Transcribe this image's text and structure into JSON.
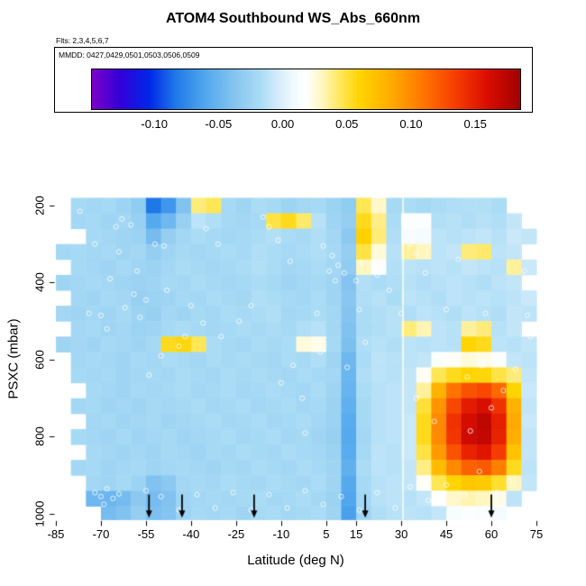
{
  "chart_data": {
    "type": "heatmap",
    "title": "ATOM4 Southbound WS_Abs_660nm",
    "annotations": {
      "flights": "Flts: 2,3,4,5,6,7",
      "mmdd": "MMDD: 0427,0429,0501,0503,0506,0509"
    },
    "xlabel": "Latitude (deg N)",
    "ylabel": "PSXC (mbar)",
    "x_axis": {
      "range": [
        -85,
        75
      ],
      "ticks": [
        -85,
        -70,
        -55,
        -40,
        -25,
        -10,
        5,
        15,
        30,
        45,
        60,
        75
      ]
    },
    "y_axis": {
      "range": [
        180,
        1015
      ],
      "ticks": [
        200,
        400,
        600,
        800,
        1000
      ],
      "reversed": true
    },
    "colorbar": {
      "range": [
        -0.15,
        0.185
      ],
      "tick_labels": [
        "-0.10",
        "-0.05",
        "0.00",
        "0.05",
        "0.10",
        "0.15"
      ],
      "tick_values": [
        -0.1,
        -0.05,
        0.0,
        0.05,
        0.1,
        0.15
      ],
      "stops": [
        [
          -0.15,
          "#7d00c8"
        ],
        [
          -0.128,
          "#3300d8"
        ],
        [
          -0.105,
          "#0026e8"
        ],
        [
          -0.085,
          "#1e78e8"
        ],
        [
          -0.06,
          "#55aaee"
        ],
        [
          -0.035,
          "#8cc8f0"
        ],
        [
          -0.018,
          "#aadcf5"
        ],
        [
          -0.005,
          "#d2ebfa"
        ],
        [
          0.008,
          "#f2fafe"
        ],
        [
          0.018,
          "#ffffff"
        ],
        [
          0.03,
          "#fff6c0"
        ],
        [
          0.045,
          "#ffe655"
        ],
        [
          0.06,
          "#ffd400"
        ],
        [
          0.085,
          "#ffaa00"
        ],
        [
          0.11,
          "#ff7300"
        ],
        [
          0.135,
          "#f53c00"
        ],
        [
          0.158,
          "#dd0f00"
        ],
        [
          0.185,
          "#a00000"
        ]
      ]
    },
    "grid": {
      "lat_edges": [
        -85,
        -80,
        -75,
        -70,
        -65,
        -60,
        -55,
        -50,
        -45,
        -40,
        -35,
        -30,
        -25,
        -20,
        -15,
        -10,
        -5,
        0,
        5,
        10,
        15,
        20,
        25,
        30,
        35,
        40,
        45,
        50,
        55,
        60,
        65,
        70,
        75
      ],
      "pressure_edges": [
        180,
        220,
        260,
        300,
        340,
        380,
        420,
        460,
        500,
        540,
        580,
        620,
        660,
        700,
        740,
        780,
        820,
        860,
        900,
        940,
        980,
        1015
      ],
      "value_scale": 0.001,
      "values": [
        [
          null,
          -20,
          -22,
          -20,
          -25,
          -32,
          -85,
          -70,
          -40,
          40,
          45,
          -20,
          -24,
          -18,
          -20,
          -25,
          -22,
          -20,
          -26,
          -32,
          45,
          28,
          -20,
          -18,
          -20,
          -18,
          -16,
          -15,
          -15,
          -18,
          null,
          null
        ],
        [
          null,
          -22,
          -20,
          -24,
          -22,
          -28,
          -60,
          -48,
          -28,
          -12,
          -16,
          -20,
          -22,
          -20,
          48,
          55,
          42,
          -14,
          -24,
          -30,
          55,
          38,
          -18,
          18,
          15,
          -15,
          -14,
          -16,
          -14,
          -16,
          -10,
          null
        ],
        [
          null,
          null,
          -20,
          -22,
          -24,
          -26,
          -45,
          -30,
          -22,
          -18,
          -20,
          -22,
          -20,
          -18,
          -15,
          -18,
          -20,
          -16,
          -22,
          -35,
          62,
          40,
          -16,
          12,
          10,
          -12,
          -14,
          -12,
          -10,
          -14,
          -8,
          -10
        ],
        [
          -22,
          -20,
          -22,
          -20,
          -24,
          -22,
          -30,
          -24,
          -20,
          -22,
          -20,
          -18,
          -20,
          -16,
          -18,
          -20,
          -18,
          -16,
          -20,
          -30,
          48,
          25,
          -14,
          35,
          30,
          -12,
          -10,
          40,
          42,
          -12,
          -10,
          null
        ],
        [
          null,
          -20,
          -22,
          -24,
          -20,
          -24,
          -26,
          -22,
          -18,
          -20,
          -22,
          -20,
          -18,
          -15,
          -18,
          -22,
          -20,
          -18,
          -22,
          -32,
          30,
          15,
          -15,
          -12,
          -14,
          -12,
          -14,
          -10,
          -12,
          -14,
          35,
          -8
        ],
        [
          -24,
          -22,
          -20,
          -22,
          -24,
          -26,
          -24,
          -20,
          -22,
          -18,
          -20,
          -22,
          -20,
          -18,
          -20,
          -24,
          -22,
          -20,
          -24,
          -38,
          -15,
          -18,
          -16,
          -14,
          -16,
          -14,
          -12,
          -14,
          -16,
          -12,
          -10,
          null
        ],
        [
          null,
          -22,
          -24,
          -20,
          -22,
          -28,
          -26,
          -24,
          -20,
          -22,
          -18,
          -20,
          -22,
          -16,
          -18,
          -20,
          -22,
          -18,
          -24,
          -36,
          -16,
          -14,
          -18,
          -12,
          -14,
          -16,
          -12,
          -14,
          -12,
          -14,
          -12,
          -8
        ],
        [
          -22,
          -24,
          -22,
          -24,
          -20,
          -26,
          -28,
          -22,
          -24,
          -20,
          -22,
          -18,
          -20,
          -18,
          -16,
          -22,
          -20,
          -18,
          -22,
          -38,
          -18,
          -16,
          -14,
          -16,
          -12,
          -14,
          -16,
          -12,
          -14,
          -16,
          -10,
          -12
        ],
        [
          null,
          -22,
          -20,
          -24,
          -22,
          -26,
          -24,
          -20,
          -18,
          -20,
          -22,
          -20,
          -18,
          -20,
          -18,
          -20,
          -16,
          -14,
          -22,
          -40,
          -18,
          -16,
          -14,
          40,
          32,
          -12,
          -14,
          35,
          40,
          -14,
          -10,
          null
        ],
        [
          -24,
          -22,
          -24,
          -20,
          -22,
          -24,
          -20,
          55,
          58,
          45,
          -18,
          -20,
          -22,
          -18,
          -20,
          -18,
          25,
          22,
          -20,
          -42,
          -16,
          -14,
          -16,
          -12,
          -14,
          -12,
          -14,
          60,
          55,
          -12,
          -14,
          -10
        ],
        [
          null,
          -22,
          -20,
          -22,
          -24,
          -20,
          -22,
          -18,
          -20,
          -22,
          -18,
          -20,
          -18,
          -20,
          -22,
          -18,
          -20,
          -16,
          -24,
          -48,
          -18,
          -12,
          -14,
          -12,
          -10,
          15,
          20,
          25,
          22,
          15,
          -10,
          -12
        ],
        [
          null,
          -20,
          -22,
          -20,
          -24,
          -22,
          -20,
          -22,
          -18,
          -20,
          -22,
          -18,
          -20,
          -18,
          -20,
          -22,
          -18,
          -20,
          -22,
          -50,
          -16,
          -12,
          -14,
          -10,
          20,
          45,
          55,
          60,
          58,
          48,
          40,
          -10
        ],
        [
          null,
          null,
          -20,
          -22,
          -24,
          -20,
          -22,
          -20,
          -18,
          -22,
          -20,
          -18,
          -22,
          -20,
          -18,
          -20,
          -22,
          -18,
          -24,
          -52,
          -18,
          -14,
          -12,
          -10,
          35,
          80,
          110,
          125,
          130,
          115,
          60,
          -8
        ],
        [
          null,
          -22,
          -20,
          -24,
          -22,
          -24,
          -20,
          -22,
          -20,
          -18,
          -22,
          -20,
          -18,
          -22,
          -20,
          -18,
          -22,
          -20,
          -26,
          -55,
          -20,
          -14,
          -12,
          -10,
          50,
          95,
          130,
          152,
          160,
          140,
          80,
          -10
        ],
        [
          null,
          null,
          -22,
          -20,
          -24,
          -22,
          -20,
          -24,
          -22,
          -20,
          -18,
          -22,
          -20,
          -18,
          -22,
          -20,
          -18,
          -22,
          -26,
          -58,
          -20,
          -14,
          -12,
          -8,
          55,
          100,
          140,
          162,
          172,
          150,
          85,
          -8
        ],
        [
          null,
          -20,
          -22,
          -24,
          -20,
          -24,
          -22,
          -20,
          -24,
          -22,
          -20,
          -18,
          -22,
          -20,
          -18,
          -22,
          -20,
          -24,
          -28,
          -60,
          -22,
          -14,
          -12,
          -8,
          55,
          100,
          138,
          165,
          170,
          148,
          82,
          -10
        ],
        [
          null,
          null,
          -20,
          -22,
          -24,
          -22,
          -24,
          -20,
          -22,
          -24,
          -20,
          -22,
          -18,
          -20,
          -22,
          -18,
          -20,
          -22,
          -26,
          -58,
          -20,
          -12,
          -14,
          -8,
          48,
          92,
          125,
          148,
          155,
          135,
          70,
          -10
        ],
        [
          null,
          -22,
          -20,
          -24,
          -22,
          -20,
          -24,
          -22,
          -20,
          -22,
          -24,
          -20,
          -22,
          -18,
          -20,
          -22,
          -18,
          -20,
          -24,
          -55,
          -18,
          -12,
          -14,
          -10,
          38,
          75,
          100,
          118,
          122,
          105,
          55,
          -12
        ],
        [
          null,
          null,
          -22,
          -24,
          -20,
          -26,
          -40,
          -35,
          -22,
          -20,
          -22,
          -18,
          -20,
          -22,
          -18,
          -20,
          -22,
          -18,
          -24,
          -60,
          -20,
          -14,
          -12,
          -10,
          20,
          45,
          60,
          68,
          66,
          52,
          30,
          -10
        ],
        [
          null,
          null,
          -48,
          -50,
          -45,
          -35,
          -45,
          -40,
          -24,
          -22,
          -20,
          -22,
          -20,
          -18,
          -22,
          -20,
          -18,
          -22,
          -26,
          -62,
          -22,
          -14,
          -12,
          -14,
          -10,
          18,
          28,
          32,
          30,
          22,
          -12,
          null
        ],
        [
          null,
          null,
          null,
          -45,
          -40,
          -30,
          -42,
          -38,
          -25,
          -20,
          -22,
          -20,
          -24,
          -20,
          -18,
          -22,
          -20,
          -18,
          -24,
          -65,
          -24,
          -16,
          -14,
          -12,
          -14,
          -10,
          12,
          15,
          14,
          10,
          null,
          null
        ]
      ]
    },
    "markers": {
      "circles_lat_pressure": [
        [
          -72,
          300
        ],
        [
          -67,
          390
        ],
        [
          -64,
          320
        ],
        [
          -59,
          430
        ],
        [
          -77,
          215
        ],
        [
          -65,
          255
        ],
        [
          -52,
          300
        ],
        [
          -49,
          305
        ],
        [
          -58,
          370
        ],
        [
          -55,
          445
        ],
        [
          -57,
          490
        ],
        [
          -62,
          465
        ],
        [
          -70,
          485
        ],
        [
          -74,
          480
        ],
        [
          -68,
          520
        ],
        [
          -54,
          640
        ],
        [
          -50,
          590
        ],
        [
          -44,
          565
        ],
        [
          -42,
          540
        ],
        [
          -35,
          260
        ],
        [
          -31,
          300
        ],
        [
          -16,
          230
        ],
        [
          -14,
          255
        ],
        [
          -11,
          290
        ],
        [
          -7,
          345
        ],
        [
          4,
          305
        ],
        [
          7,
          330
        ],
        [
          9,
          355
        ],
        [
          11,
          375
        ],
        [
          8,
          395
        ],
        [
          6,
          370
        ],
        [
          2,
          480
        ],
        [
          3,
          580
        ],
        [
          -3,
          700
        ],
        [
          -2,
          790
        ],
        [
          15,
          395
        ],
        [
          17,
          350
        ],
        [
          16,
          470
        ],
        [
          18,
          555
        ],
        [
          33,
          300
        ],
        [
          35,
          325
        ],
        [
          38,
          375
        ],
        [
          49,
          340
        ],
        [
          54,
          590
        ],
        [
          57,
          615
        ],
        [
          52,
          645
        ],
        [
          45,
          470
        ],
        [
          38,
          640
        ],
        [
          35,
          700
        ],
        [
          41,
          760
        ],
        [
          53,
          785
        ],
        [
          60,
          725
        ],
        [
          64,
          680
        ],
        [
          68,
          625
        ],
        [
          72,
          485
        ],
        [
          71,
          370
        ],
        [
          73,
          540
        ],
        [
          66,
          915
        ],
        [
          62,
          945
        ],
        [
          56,
          890
        ],
        [
          51,
          950
        ],
        [
          45,
          925
        ],
        [
          39,
          965
        ],
        [
          33,
          930
        ],
        [
          28,
          985
        ],
        [
          22,
          945
        ],
        [
          16,
          990
        ],
        [
          10,
          955
        ],
        [
          4,
          975
        ],
        [
          -2,
          940
        ],
        [
          -8,
          985
        ],
        [
          -14,
          950
        ],
        [
          -20,
          990
        ],
        [
          -26,
          945
        ],
        [
          -32,
          985
        ],
        [
          -38,
          950
        ],
        [
          -44,
          990
        ],
        [
          -68,
          935
        ],
        [
          -70,
          955
        ],
        [
          -66,
          960
        ],
        [
          -69,
          975
        ],
        [
          -72,
          945
        ],
        [
          -64,
          948
        ],
        [
          -76,
          940
        ],
        [
          -60,
          250
        ],
        [
          -63,
          235
        ],
        [
          -48,
          420
        ],
        [
          -40,
          460
        ],
        [
          -36,
          505
        ],
        [
          -30,
          540
        ],
        [
          -24,
          500
        ],
        [
          -20,
          460
        ],
        [
          26,
          420
        ],
        [
          22,
          380
        ],
        [
          30,
          480
        ],
        [
          58,
          480
        ],
        [
          12,
          620
        ],
        [
          -6,
          615
        ],
        [
          -10,
          660
        ],
        [
          -55,
          940
        ],
        [
          -50,
          955
        ]
      ],
      "arrow_lats": [
        -54,
        -43,
        -19,
        18,
        60
      ],
      "gap_lats": [
        30.6
      ]
    }
  }
}
